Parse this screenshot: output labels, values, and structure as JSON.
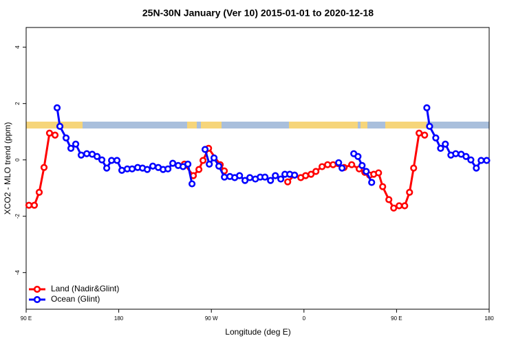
{
  "chart_data": {
    "type": "line",
    "title": "25N-30N January (Ver 10)   2015-01-01 to 2020-12-18",
    "x_label": "Longitude (deg E)",
    "y_label": "XCO2 - MLO trend (ppm)",
    "xlim": [
      90,
      540
    ],
    "ylim": [
      -5.3,
      4.7
    ],
    "xticks": [
      {
        "value": 90,
        "label": "90 E"
      },
      180,
      {
        "value": 270,
        "label": "90 W"
      },
      {
        "value": 360,
        "label": "0"
      },
      {
        "value": 450,
        "label": "90 E"
      },
      {
        "value": 540,
        "label": "180"
      }
    ],
    "yticks": [
      -4,
      -2,
      0,
      2,
      4
    ],
    "legend": "bottom-left",
    "series": [
      {
        "name": "Land (Nadir&Glint)",
        "color": "#ff0000",
        "x": [
          92.7,
          98,
          102.7,
          107.4,
          112.7,
          118.1,
          null,
          243.8,
          252.5,
          257.9,
          261.9,
          267.3,
          278.6,
          282.6,
          null,
          344.2,
          350.9,
          356.9,
          361.6,
          366.9,
          371.6,
          377.6,
          383,
          388.3,
          399,
          406.4,
          413.7,
          419.1,
          423.8,
          427.8,
          432.5,
          436.5,
          442.5,
          447.2,
          452.5,
          457.9,
          462.6,
          466.6,
          471.9,
          477.3
        ],
        "values": [
          -1.61,
          -1.61,
          -1.15,
          -0.27,
          0.95,
          0.88,
          null,
          -0.15,
          -0.56,
          -0.34,
          -0.02,
          0.41,
          -0.17,
          -0.39,
          null,
          -0.78,
          -0.54,
          -0.63,
          -0.56,
          -0.51,
          -0.41,
          -0.24,
          -0.17,
          -0.17,
          -0.27,
          -0.17,
          -0.32,
          -0.44,
          -0.54,
          -0.51,
          -0.46,
          -0.95,
          -1.41,
          -1.71,
          -1.63,
          -1.63,
          -1.15,
          -0.29,
          0.95,
          0.88
        ]
      },
      {
        "name": "Ocean (Glint)",
        "color": "#0000ff",
        "x": [
          120.1,
          122.8,
          128.8,
          133.5,
          138.2,
          143.5,
          148.9,
          154.2,
          158.9,
          163.6,
          168.3,
          173,
          178.3,
          183,
          188.3,
          193,
          198.4,
          203.1,
          207.7,
          213.1,
          218.4,
          223.1,
          227.8,
          232.5,
          237.8,
          242.5,
          247.2,
          251.2,
          null,
          263.9,
          268,
          272.6,
          277.3,
          282.7,
          288,
          292.7,
          297.4,
          302.7,
          307.4,
          312.8,
          317.5,
          322.1,
          327.5,
          332.2,
          337.5,
          341.5,
          346.2,
          350.9,
          null,
          393.7,
          397,
          null,
          408.4,
          412.5,
          416.5,
          420.5,
          425.8,
          null,
          479.4,
          482.1,
          488.1,
          492.8,
          497.4,
          502.8,
          507.5,
          512.8,
          517.5,
          522.2,
          527.5,
          532.2,
          537.6
        ],
        "values": [
          1.85,
          1.19,
          0.78,
          0.41,
          0.56,
          0.17,
          0.22,
          0.2,
          0.12,
          0,
          -0.29,
          -0.02,
          -0.02,
          -0.37,
          -0.32,
          -0.32,
          -0.27,
          -0.29,
          -0.34,
          -0.22,
          -0.27,
          -0.34,
          -0.32,
          -0.12,
          -0.2,
          -0.24,
          -0.15,
          -0.85,
          null,
          0.37,
          -0.15,
          0.07,
          -0.22,
          -0.61,
          -0.59,
          -0.63,
          -0.56,
          -0.73,
          -0.63,
          -0.68,
          -0.61,
          -0.61,
          -0.73,
          -0.56,
          -0.68,
          -0.51,
          -0.51,
          -0.54,
          null,
          -0.1,
          -0.29,
          null,
          0.22,
          0.12,
          -0.2,
          -0.41,
          -0.8,
          null,
          1.85,
          1.19,
          0.78,
          0.41,
          0.56,
          0.17,
          0.22,
          0.2,
          0.12,
          0,
          -0.29,
          -0.02,
          -0.02
        ]
      }
    ]
  }
}
